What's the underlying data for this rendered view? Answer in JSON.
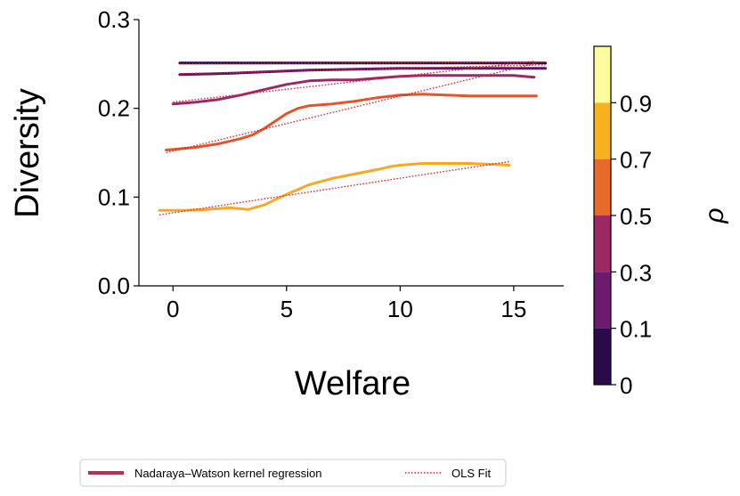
{
  "chart_data": {
    "type": "line",
    "title": "",
    "xlabel": "Welfare",
    "ylabel": "Diversity",
    "xlim": [
      -1.5,
      17.2
    ],
    "ylim": [
      0.0,
      0.3
    ],
    "xticks": [
      0,
      5,
      10,
      15
    ],
    "xtick_labels": [
      "0",
      "5",
      "10",
      "15"
    ],
    "yticks": [
      0.0,
      0.1,
      0.2,
      0.3
    ],
    "ytick_labels": [
      "0.0",
      "0.1",
      "0.2",
      "0.3"
    ],
    "grid": false,
    "series": [
      {
        "name": "rho=0",
        "color": "#2a0a4a",
        "kernel": {
          "x": [
            0.3,
            2,
            4,
            6,
            8,
            10,
            12,
            14,
            16.4
          ],
          "y": [
            0.251,
            0.251,
            0.251,
            0.251,
            0.251,
            0.251,
            0.251,
            0.251,
            0.251
          ]
        },
        "ols": {
          "x": [
            0.3,
            16.4
          ],
          "y": [
            0.25,
            0.252
          ]
        }
      },
      {
        "name": "rho=0.1",
        "color": "#5c1463",
        "kernel": {
          "x": [
            0.3,
            2,
            4,
            6,
            8,
            10,
            12,
            14,
            16.4
          ],
          "y": [
            0.238,
            0.239,
            0.241,
            0.243,
            0.244,
            0.245,
            0.245,
            0.245,
            0.245
          ]
        },
        "ols": {
          "x": [
            0.3,
            16.4
          ],
          "y": [
            0.239,
            0.249
          ]
        }
      },
      {
        "name": "rho=0.3",
        "color": "#9b2964",
        "kernel": {
          "x": [
            0.0,
            1,
            2,
            3,
            4,
            5,
            6,
            7,
            8,
            9,
            10,
            11,
            12,
            13,
            14,
            15,
            15.9
          ],
          "y": [
            0.205,
            0.207,
            0.21,
            0.215,
            0.221,
            0.227,
            0.231,
            0.232,
            0.232,
            0.234,
            0.236,
            0.237,
            0.237,
            0.237,
            0.237,
            0.237,
            0.235
          ]
        },
        "ols": {
          "x": [
            0.0,
            15.9
          ],
          "y": [
            0.207,
            0.253
          ]
        }
      },
      {
        "name": "rho=0.5",
        "color": "#e2552b",
        "kernel": {
          "x": [
            -0.3,
            1,
            2,
            3,
            3.5,
            4,
            5,
            5.5,
            6,
            7,
            8,
            9,
            10,
            11,
            12,
            13,
            14,
            15,
            16
          ],
          "y": [
            0.153,
            0.156,
            0.16,
            0.166,
            0.17,
            0.177,
            0.194,
            0.2,
            0.203,
            0.205,
            0.208,
            0.212,
            0.215,
            0.216,
            0.215,
            0.214,
            0.214,
            0.214,
            0.214
          ]
        },
        "ols": {
          "x": [
            -0.3,
            16
          ],
          "y": [
            0.15,
            0.251
          ]
        }
      },
      {
        "name": "rho=0.7",
        "color": "#f8a824",
        "kernel": {
          "x": [
            -0.6,
            0.5,
            1.5,
            2.5,
            3.3,
            4,
            5,
            6,
            7,
            8,
            9,
            9.5,
            10,
            11,
            12,
            13,
            14,
            14.8
          ],
          "y": [
            0.085,
            0.085,
            0.086,
            0.088,
            0.086,
            0.091,
            0.103,
            0.114,
            0.121,
            0.126,
            0.131,
            0.134,
            0.136,
            0.138,
            0.138,
            0.138,
            0.137,
            0.136
          ]
        },
        "ols": {
          "x": [
            -0.6,
            14.8
          ],
          "y": [
            0.08,
            0.14
          ]
        }
      }
    ],
    "colorbar": {
      "label": "ρ",
      "boundaries": [
        0,
        0.1,
        0.3,
        0.5,
        0.7,
        0.9
      ],
      "tick_labels": [
        "0",
        "0.1",
        "0.3",
        "0.5",
        "0.7",
        "0.9"
      ],
      "colors": [
        "#2a0a4a",
        "#6c1a6e",
        "#9b2964",
        "#e86a2b",
        "#f8b21e",
        "#fcfc9e"
      ]
    },
    "legend": {
      "position": "bottom-center",
      "entries": [
        {
          "label": "Nadaraya–Watson kernel regression",
          "style": "solid",
          "color": "#b8304f"
        },
        {
          "label": "OLS Fit",
          "style": "dotted",
          "color": "#e8202c"
        }
      ]
    },
    "ols_color": "#e8202c"
  }
}
